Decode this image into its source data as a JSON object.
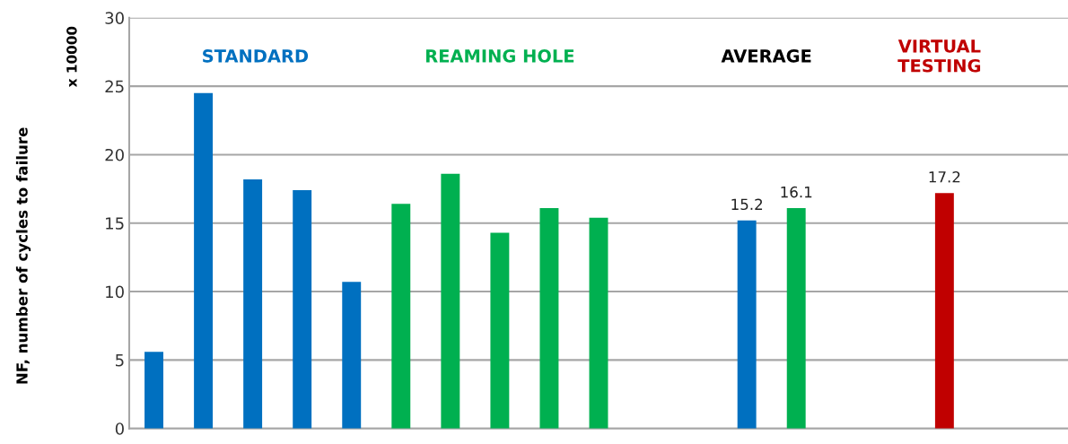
{
  "chart_data": {
    "type": "bar",
    "ylabel": "NF, number of cycles to failure",
    "categories": [
      null,
      null,
      null,
      null,
      null,
      null,
      null,
      null,
      null,
      null,
      null,
      null,
      null,
      null,
      null,
      null,
      null,
      null,
      null
    ],
    "values": [
      5.6,
      24.5,
      18.2,
      17.4,
      10.7,
      16.4,
      18.6,
      14.3,
      16.1,
      15.4,
      null,
      null,
      15.2,
      16.1,
      null,
      null,
      17.2,
      null,
      null
    ],
    "colors": [
      "#0070c0",
      "#0070c0",
      "#0070c0",
      "#0070c0",
      "#0070c0",
      "#00b050",
      "#00b050",
      "#00b050",
      "#00b050",
      "#00b050",
      null,
      null,
      "#0070c0",
      "#00b050",
      null,
      null,
      "#c00000",
      null,
      null
    ],
    "value_labels": [
      null,
      null,
      null,
      null,
      null,
      null,
      null,
      null,
      null,
      null,
      null,
      null,
      "15.2",
      "16.1",
      null,
      null,
      "17.2",
      null,
      null
    ],
    "ylim": [
      0,
      30
    ],
    "yticks": [
      0,
      5,
      10,
      15,
      20,
      25,
      30
    ],
    "grid": "y",
    "annotations": [
      "x 10000",
      "STANDARD",
      "REAMING HOLE",
      "AVERAGE",
      "VIRTUAL\nTESTING"
    ]
  }
}
